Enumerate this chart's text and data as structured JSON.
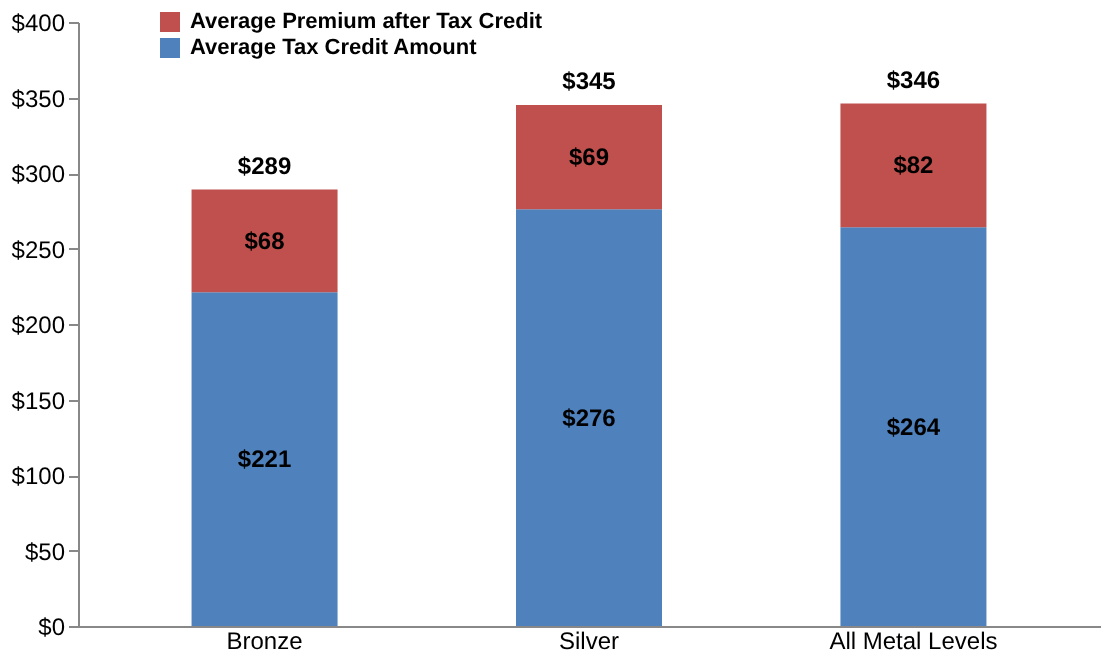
{
  "chart_data": {
    "type": "bar",
    "stacked": true,
    "categories": [
      "Bronze",
      "Silver",
      "All Metal Levels"
    ],
    "series": [
      {
        "name": "Average Tax Credit Amount",
        "color": "#4f81bd",
        "values": [
          221,
          276,
          264
        ],
        "value_labels": [
          "$221",
          "$276",
          "$264"
        ]
      },
      {
        "name": "Average Premium after Tax Credit",
        "color": "#c0504d",
        "values": [
          68,
          69,
          82
        ],
        "value_labels": [
          "$68",
          "$69",
          "$82"
        ]
      }
    ],
    "totals": [
      "$289",
      "$345",
      "$346"
    ],
    "ylim": [
      0,
      400
    ],
    "yticks": [
      {
        "value": 0,
        "label": "$0"
      },
      {
        "value": 50,
        "label": "$50"
      },
      {
        "value": 100,
        "label": "$100"
      },
      {
        "value": 150,
        "label": "$150"
      },
      {
        "value": 200,
        "label": "$200"
      },
      {
        "value": 250,
        "label": "$250"
      },
      {
        "value": 300,
        "label": "$300"
      },
      {
        "value": 350,
        "label": "$350"
      },
      {
        "value": 400,
        "label": "$400"
      }
    ],
    "grid": false,
    "legend": "top left"
  }
}
